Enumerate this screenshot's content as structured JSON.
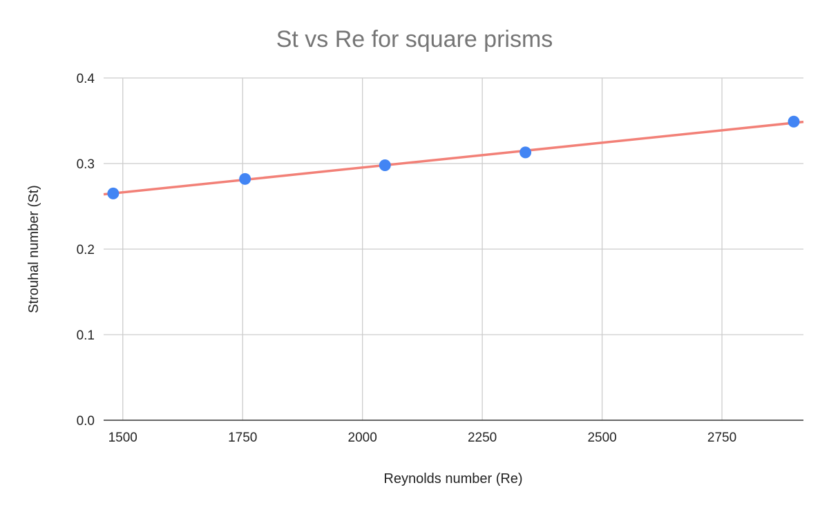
{
  "chart_data": {
    "type": "scatter",
    "title": "St vs Re for square prisms",
    "xlabel": "Reynolds number (Re)",
    "ylabel": "Strouhal number (St)",
    "xlim": [
      1460,
      2920
    ],
    "ylim": [
      0,
      0.4
    ],
    "x_ticks": [
      1500,
      1750,
      2000,
      2250,
      2500,
      2750
    ],
    "y_ticks": [
      "0.0",
      "0.1",
      "0.2",
      "0.3",
      "0.4"
    ],
    "series": [
      {
        "x": [
          1480,
          1755,
          2047,
          2340,
          2925
        ],
        "y": [
          0.265,
          0.282,
          0.298,
          0.313,
          0.349
        ]
      }
    ],
    "trendline": {
      "type": "linear",
      "x": [
        1460,
        2925
      ],
      "y": [
        0.264,
        0.349
      ]
    },
    "grid": true,
    "legend": "none",
    "colors": {
      "points": "#4285f4",
      "trendline": "#f28077",
      "title": "#757575"
    }
  }
}
